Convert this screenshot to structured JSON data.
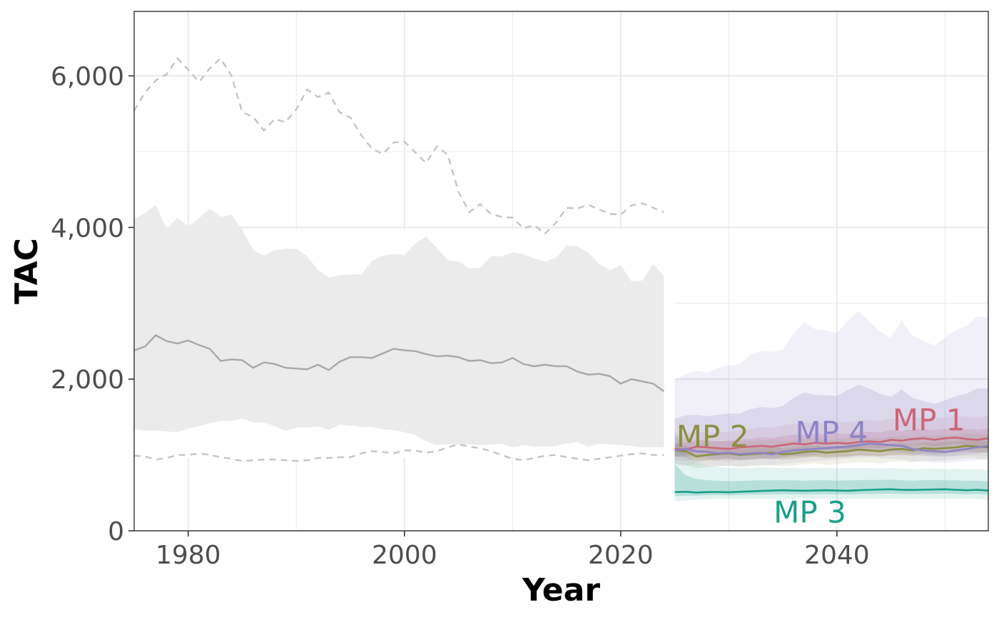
{
  "chart_data": {
    "type": "line",
    "title": "",
    "xlabel": "Year",
    "ylabel": "TAC",
    "xlim": [
      1975,
      2054
    ],
    "ylim": [
      0,
      6850
    ],
    "x_ticks": [
      1980,
      2000,
      2020,
      2040
    ],
    "x_tick_labels": [
      "1980",
      "2000",
      "2020",
      "2040"
    ],
    "y_ticks": [
      0,
      2000,
      4000,
      6000
    ],
    "y_tick_labels": [
      "0",
      "2,000",
      "4,000",
      "6,000"
    ],
    "grid": true,
    "legend": "none",
    "historical": {
      "x": [
        1975,
        1976,
        1977,
        1978,
        1979,
        1980,
        1981,
        1982,
        1983,
        1984,
        1985,
        1986,
        1987,
        1988,
        1989,
        1990,
        1991,
        1992,
        1993,
        1994,
        1995,
        1996,
        1997,
        1998,
        1999,
        2000,
        2001,
        2002,
        2003,
        2004,
        2005,
        2006,
        2007,
        2008,
        2009,
        2010,
        2011,
        2012,
        2013,
        2014,
        2015,
        2016,
        2017,
        2018,
        2019,
        2020,
        2021,
        2022,
        2023,
        2024
      ],
      "median": [
        2380,
        2430,
        2580,
        2500,
        2470,
        2510,
        2450,
        2400,
        2240,
        2260,
        2250,
        2150,
        2220,
        2200,
        2150,
        2140,
        2130,
        2190,
        2120,
        2230,
        2290,
        2290,
        2280,
        2340,
        2400,
        2380,
        2370,
        2330,
        2300,
        2310,
        2290,
        2240,
        2250,
        2210,
        2220,
        2280,
        2200,
        2170,
        2190,
        2170,
        2170,
        2100,
        2060,
        2070,
        2040,
        1940,
        2000,
        1970,
        1940,
        1840
      ],
      "band_upper": [
        4110,
        4190,
        4300,
        3980,
        4130,
        4020,
        4120,
        4250,
        4140,
        4170,
        3970,
        3700,
        3630,
        3700,
        3720,
        3720,
        3620,
        3440,
        3340,
        3370,
        3380,
        3380,
        3560,
        3630,
        3650,
        3640,
        3790,
        3880,
        3730,
        3570,
        3550,
        3460,
        3470,
        3620,
        3620,
        3670,
        3650,
        3590,
        3550,
        3600,
        3760,
        3750,
        3670,
        3520,
        3440,
        3500,
        3290,
        3300,
        3520,
        3360
      ],
      "band_lower": [
        1340,
        1320,
        1320,
        1310,
        1300,
        1350,
        1380,
        1420,
        1450,
        1450,
        1480,
        1430,
        1430,
        1380,
        1320,
        1360,
        1360,
        1380,
        1330,
        1400,
        1390,
        1370,
        1370,
        1340,
        1330,
        1300,
        1260,
        1180,
        1130,
        1140,
        1140,
        1140,
        1130,
        1140,
        1150,
        1100,
        1130,
        1110,
        1110,
        1120,
        1150,
        1170,
        1110,
        1150,
        1140,
        1130,
        1120,
        1100,
        1100,
        1100
      ],
      "upper_dashed": [
        5540,
        5780,
        5940,
        6020,
        6230,
        6080,
        5920,
        6100,
        6230,
        6000,
        5520,
        5460,
        5280,
        5430,
        5390,
        5560,
        5820,
        5720,
        5780,
        5520,
        5450,
        5220,
        5040,
        4970,
        5120,
        5130,
        4990,
        4850,
        5070,
        4960,
        4470,
        4200,
        4310,
        4180,
        4140,
        4130,
        3990,
        4030,
        3920,
        4060,
        4260,
        4250,
        4300,
        4240,
        4180,
        4170,
        4290,
        4320,
        4260,
        4200
      ],
      "lower_dashed": [
        990,
        980,
        940,
        960,
        1000,
        1000,
        1020,
        1000,
        970,
        950,
        920,
        930,
        940,
        940,
        930,
        920,
        930,
        960,
        960,
        970,
        970,
        1020,
        1050,
        1040,
        1020,
        1060,
        1060,
        1030,
        1050,
        1100,
        1140,
        1110,
        1090,
        1050,
        1000,
        950,
        930,
        960,
        990,
        1000,
        970,
        950,
        930,
        950,
        970,
        990,
        1010,
        1020,
        1000,
        1000
      ]
    },
    "projection_x": [
      2025,
      2026,
      2027,
      2028,
      2029,
      2030,
      2031,
      2032,
      2033,
      2034,
      2035,
      2036,
      2037,
      2038,
      2039,
      2040,
      2041,
      2042,
      2043,
      2044,
      2045,
      2046,
      2047,
      2048,
      2049,
      2050,
      2051,
      2052,
      2053,
      2054
    ],
    "series": [
      {
        "name": "MP 1",
        "color": "#cc6677",
        "median": [
          1080,
          1070,
          1110,
          1100,
          1090,
          1080,
          1100,
          1110,
          1120,
          1110,
          1130,
          1150,
          1140,
          1160,
          1150,
          1160,
          1150,
          1170,
          1180,
          1170,
          1200,
          1190,
          1210,
          1220,
          1200,
          1220,
          1230,
          1210,
          1200,
          1220
        ],
        "band_outer": [
          [
            930,
            1260
          ],
          [
            920,
            1280
          ],
          [
            940,
            1310
          ],
          [
            930,
            1300
          ],
          [
            920,
            1290
          ],
          [
            910,
            1310
          ],
          [
            930,
            1330
          ],
          [
            940,
            1340
          ],
          [
            950,
            1370
          ],
          [
            940,
            1360
          ],
          [
            960,
            1390
          ],
          [
            980,
            1410
          ],
          [
            970,
            1420
          ],
          [
            980,
            1430
          ],
          [
            970,
            1420
          ],
          [
            980,
            1440
          ],
          [
            970,
            1430
          ],
          [
            990,
            1450
          ],
          [
            1000,
            1460
          ],
          [
            990,
            1450
          ],
          [
            1010,
            1480
          ],
          [
            1000,
            1470
          ],
          [
            1020,
            1490
          ],
          [
            1030,
            1500
          ],
          [
            1010,
            1480
          ],
          [
            1030,
            1500
          ],
          [
            1040,
            1520
          ],
          [
            1020,
            1500
          ],
          [
            1010,
            1490
          ],
          [
            1030,
            1510
          ]
        ]
      },
      {
        "name": "MP 2",
        "color": "#8b8f40",
        "median": [
          1060,
          1050,
          980,
          1000,
          1010,
          1020,
          1000,
          1010,
          1020,
          1030,
          1010,
          1020,
          1040,
          1050,
          1030,
          1040,
          1050,
          1070,
          1060,
          1050,
          1070,
          1080,
          1060,
          1090,
          1080,
          1090,
          1100,
          1120,
          1110,
          1100
        ],
        "band_outer": [
          [
            880,
            1230
          ],
          [
            870,
            1220
          ],
          [
            820,
            1150
          ],
          [
            840,
            1170
          ],
          [
            850,
            1180
          ],
          [
            860,
            1190
          ],
          [
            840,
            1170
          ],
          [
            850,
            1180
          ],
          [
            860,
            1190
          ],
          [
            870,
            1200
          ],
          [
            850,
            1180
          ],
          [
            860,
            1190
          ],
          [
            880,
            1210
          ],
          [
            890,
            1220
          ],
          [
            870,
            1200
          ],
          [
            880,
            1210
          ],
          [
            890,
            1220
          ],
          [
            910,
            1240
          ],
          [
            900,
            1230
          ],
          [
            890,
            1220
          ],
          [
            910,
            1240
          ],
          [
            920,
            1250
          ],
          [
            900,
            1230
          ],
          [
            930,
            1260
          ],
          [
            920,
            1250
          ],
          [
            930,
            1260
          ],
          [
            940,
            1270
          ],
          [
            960,
            1290
          ],
          [
            950,
            1280
          ],
          [
            940,
            1270
          ]
        ]
      },
      {
        "name": "MP 3",
        "color": "#1a9e8a",
        "median": [
          510,
          515,
          505,
          510,
          512,
          508,
          515,
          520,
          525,
          530,
          535,
          530,
          528,
          532,
          535,
          530,
          528,
          535,
          540,
          545,
          548,
          540,
          538,
          542,
          545,
          548,
          540,
          535,
          540,
          530
        ],
        "band_outer": [
          [
            390,
            1330
          ],
          [
            400,
            1000
          ],
          [
            410,
            900
          ],
          [
            420,
            860
          ],
          [
            420,
            840
          ],
          [
            420,
            830
          ],
          [
            420,
            830
          ],
          [
            420,
            830
          ],
          [
            420,
            840
          ],
          [
            420,
            830
          ],
          [
            420,
            830
          ],
          [
            420,
            830
          ],
          [
            420,
            820
          ],
          [
            420,
            830
          ],
          [
            420,
            830
          ],
          [
            420,
            820
          ],
          [
            420,
            830
          ],
          [
            420,
            830
          ],
          [
            420,
            830
          ],
          [
            420,
            820
          ],
          [
            420,
            830
          ],
          [
            420,
            820
          ],
          [
            420,
            810
          ],
          [
            420,
            820
          ],
          [
            420,
            820
          ],
          [
            420,
            810
          ],
          [
            420,
            820
          ],
          [
            420,
            810
          ],
          [
            420,
            810
          ],
          [
            410,
            800
          ]
        ]
      },
      {
        "name": "MP 4",
        "color": "#8c84c6",
        "median": [
          1060,
          1080,
          1050,
          1040,
          1020,
          1030,
          1010,
          1020,
          1030,
          1010,
          1040,
          1060,
          1070,
          1080,
          1090,
          1100,
          1110,
          1130,
          1150,
          1140,
          1130,
          1120,
          1080,
          1060,
          1050,
          1040,
          1060,
          1080,
          1100,
          1120
        ],
        "band_outer": [
          [
            870,
            1990
          ],
          [
            860,
            2060
          ],
          [
            870,
            2110
          ],
          [
            860,
            2090
          ],
          [
            850,
            2150
          ],
          [
            860,
            2180
          ],
          [
            850,
            2200
          ],
          [
            860,
            2320
          ],
          [
            870,
            2370
          ],
          [
            860,
            2360
          ],
          [
            880,
            2390
          ],
          [
            900,
            2600
          ],
          [
            910,
            2750
          ],
          [
            920,
            2660
          ],
          [
            930,
            2640
          ],
          [
            940,
            2610
          ],
          [
            950,
            2770
          ],
          [
            960,
            2900
          ],
          [
            970,
            2760
          ],
          [
            960,
            2620
          ],
          [
            950,
            2550
          ],
          [
            940,
            2770
          ],
          [
            920,
            2570
          ],
          [
            910,
            2510
          ],
          [
            900,
            2440
          ],
          [
            900,
            2550
          ],
          [
            910,
            2650
          ],
          [
            920,
            2700
          ],
          [
            930,
            2830
          ],
          [
            940,
            2800
          ]
        ]
      }
    ],
    "series_labels": [
      {
        "name": "MP 1",
        "text": "MP 1",
        "x": 2048.5,
        "y": 1465
      },
      {
        "name": "MP 2",
        "text": "MP 2",
        "x": 2028.5,
        "y": 1250
      },
      {
        "name": "MP 3",
        "text": "MP 3",
        "x": 2037.5,
        "y": 250
      },
      {
        "name": "MP 4",
        "text": "MP 4",
        "x": 2039.5,
        "y": 1300
      }
    ]
  }
}
